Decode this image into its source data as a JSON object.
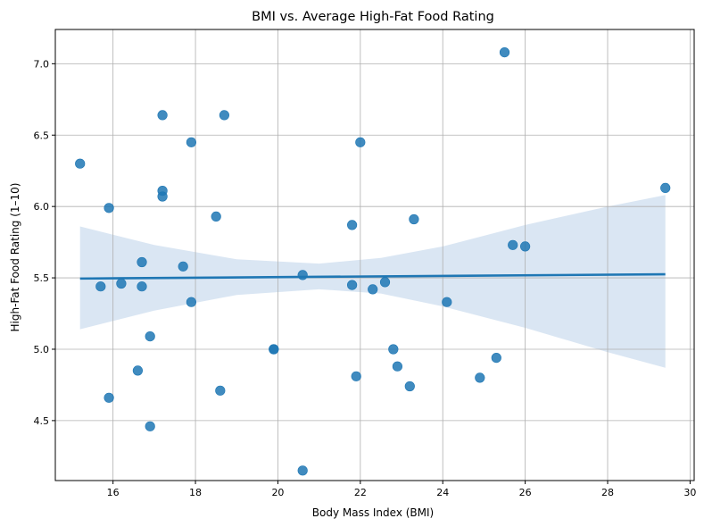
{
  "chart_data": {
    "type": "scatter",
    "title": "BMI vs. Average High-Fat Food Rating",
    "xlabel": "Body Mass Index (BMI)",
    "ylabel": "High-Fat Food Rating (1–10)",
    "xlim": [
      14.6,
      30.1
    ],
    "ylim": [
      4.08,
      7.24
    ],
    "x_ticks": [
      16,
      18,
      20,
      22,
      24,
      26,
      28,
      30
    ],
    "y_ticks": [
      4.5,
      5.0,
      5.5,
      6.0,
      6.5,
      7.0
    ],
    "x_tick_labels": [
      "16",
      "18",
      "20",
      "22",
      "24",
      "26",
      "28",
      "30"
    ],
    "y_tick_labels": [
      "4.5",
      "5.0",
      "5.5",
      "6.0",
      "6.5",
      "7.0"
    ],
    "grid": true,
    "legend": "none",
    "point_color": "#1f77b4",
    "line_color": "#1f77b4",
    "band_color": "#c6d9ec",
    "points": [
      {
        "x": 15.2,
        "y": 6.3
      },
      {
        "x": 15.7,
        "y": 5.44
      },
      {
        "x": 15.9,
        "y": 5.99
      },
      {
        "x": 15.9,
        "y": 4.66
      },
      {
        "x": 16.2,
        "y": 5.46
      },
      {
        "x": 16.6,
        "y": 4.85
      },
      {
        "x": 16.7,
        "y": 5.61
      },
      {
        "x": 16.7,
        "y": 5.44
      },
      {
        "x": 16.9,
        "y": 5.09
      },
      {
        "x": 16.9,
        "y": 4.46
      },
      {
        "x": 17.2,
        "y": 6.64
      },
      {
        "x": 17.2,
        "y": 6.11
      },
      {
        "x": 17.2,
        "y": 6.07
      },
      {
        "x": 17.7,
        "y": 5.58
      },
      {
        "x": 17.9,
        "y": 6.45
      },
      {
        "x": 17.9,
        "y": 5.33
      },
      {
        "x": 18.5,
        "y": 5.93
      },
      {
        "x": 18.6,
        "y": 4.71
      },
      {
        "x": 18.7,
        "y": 6.64
      },
      {
        "x": 19.9,
        "y": 5.0
      },
      {
        "x": 19.9,
        "y": 5.0
      },
      {
        "x": 20.6,
        "y": 5.52
      },
      {
        "x": 20.6,
        "y": 4.15
      },
      {
        "x": 21.8,
        "y": 5.87
      },
      {
        "x": 21.8,
        "y": 5.45
      },
      {
        "x": 21.9,
        "y": 4.81
      },
      {
        "x": 22.0,
        "y": 6.45
      },
      {
        "x": 22.3,
        "y": 5.42
      },
      {
        "x": 22.6,
        "y": 5.47
      },
      {
        "x": 22.8,
        "y": 5.0
      },
      {
        "x": 22.9,
        "y": 4.88
      },
      {
        "x": 23.2,
        "y": 4.74
      },
      {
        "x": 23.3,
        "y": 5.91
      },
      {
        "x": 24.1,
        "y": 5.33
      },
      {
        "x": 24.9,
        "y": 4.8
      },
      {
        "x": 25.3,
        "y": 4.94
      },
      {
        "x": 25.5,
        "y": 7.08
      },
      {
        "x": 25.7,
        "y": 5.73
      },
      {
        "x": 26.0,
        "y": 5.72
      },
      {
        "x": 29.4,
        "y": 6.13
      }
    ],
    "regression": {
      "x": [
        15.2,
        29.4
      ],
      "y": [
        5.495,
        5.525
      ]
    },
    "confidence_band": {
      "x": [
        15.2,
        17.0,
        19.0,
        21.0,
        22.5,
        24.0,
        26.0,
        28.0,
        29.4
      ],
      "upper": [
        5.86,
        5.73,
        5.63,
        5.6,
        5.64,
        5.72,
        5.87,
        6.0,
        6.08
      ],
      "lower": [
        5.14,
        5.27,
        5.38,
        5.42,
        5.39,
        5.3,
        5.15,
        4.98,
        4.87
      ]
    }
  }
}
